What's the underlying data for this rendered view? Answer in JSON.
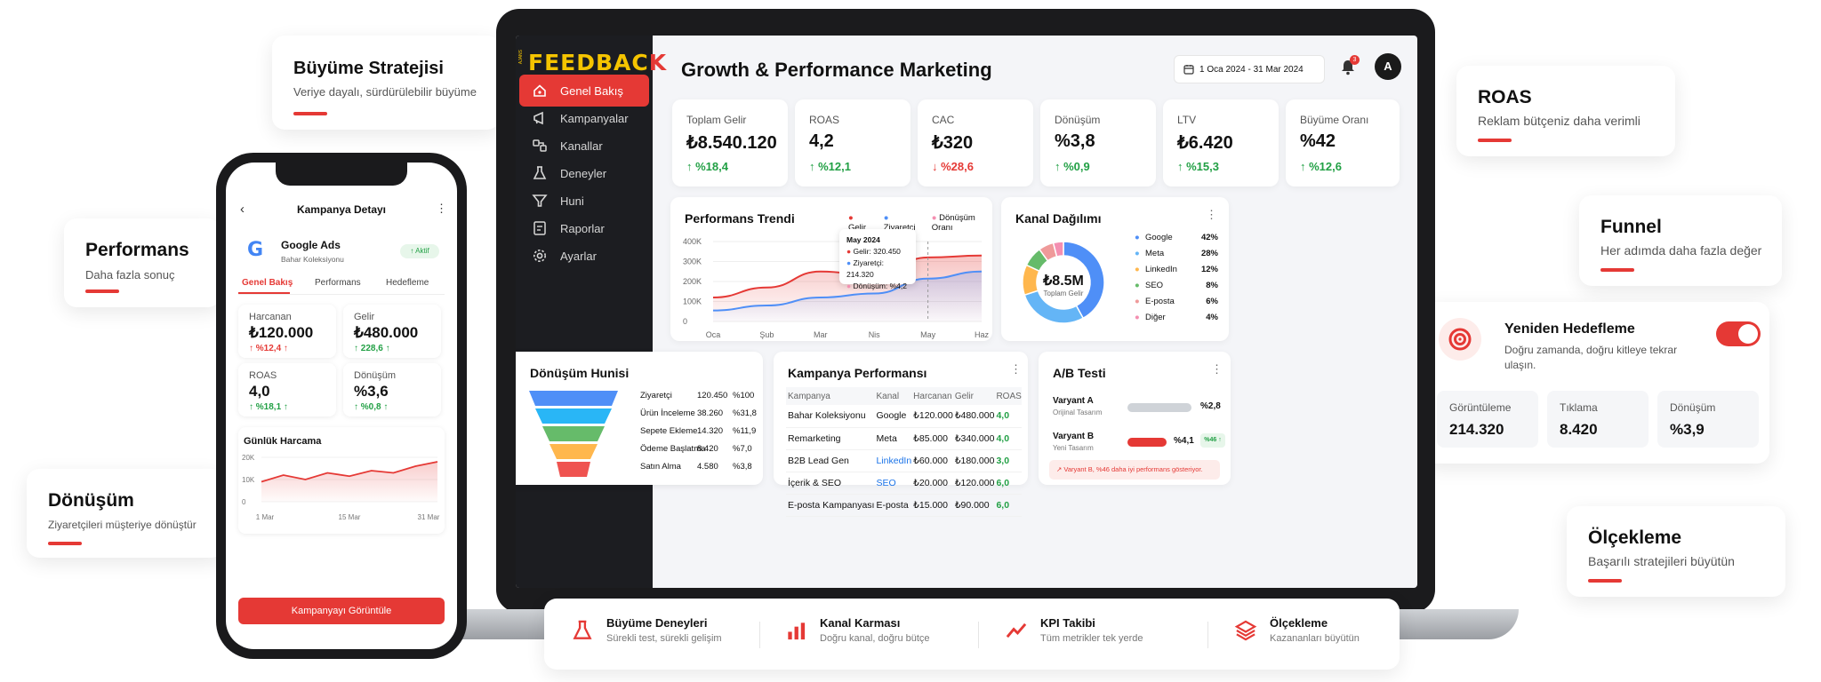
{
  "app": {
    "logo_main": "FEEDBAC",
    "logo_accent": "K",
    "logo_prefix": "AJANS",
    "title": "Growth & Performance Marketing",
    "date_range": "1 Oca 2024 - 31 Mar 2024",
    "notification_count": "3",
    "avatar_initial": "A"
  },
  "sidebar": {
    "items": [
      {
        "label": "Genel Bakış",
        "icon": "home-icon"
      },
      {
        "label": "Kampanyalar",
        "icon": "megaphone-icon"
      },
      {
        "label": "Kanallar",
        "icon": "channels-icon"
      },
      {
        "label": "Deneyler",
        "icon": "flask-icon"
      },
      {
        "label": "Huni",
        "icon": "funnel-icon"
      },
      {
        "label": "Raporlar",
        "icon": "report-icon"
      },
      {
        "label": "Ayarlar",
        "icon": "gear-icon"
      }
    ]
  },
  "kpis": [
    {
      "label": "Toplam Gelir",
      "value": "₺8.540.120",
      "delta": "%18,4",
      "dir": "up"
    },
    {
      "label": "ROAS",
      "value": "4,2",
      "delta": "%12,1",
      "dir": "up"
    },
    {
      "label": "CAC",
      "value": "₺320",
      "delta": "%28,6",
      "dir": "down"
    },
    {
      "label": "Dönüşüm",
      "value": "%3,8",
      "delta": "%0,9",
      "dir": "up"
    },
    {
      "label": "LTV",
      "value": "₺6.420",
      "delta": "%15,3",
      "dir": "up"
    },
    {
      "label": "Büyüme Oranı",
      "value": "%42",
      "delta": "%12,6",
      "dir": "up"
    }
  ],
  "trend": {
    "title": "Performans Trendi",
    "legend": [
      "Gelir",
      "Ziyaretçi",
      "Dönüşüm Oranı"
    ],
    "tooltip": {
      "title": "May 2024",
      "l1": "Gelir: 320.450",
      "l2": "Ziyaretçi: 214.320",
      "l3": "Dönüşüm: %4,2"
    }
  },
  "channels": {
    "title": "Kanal Dağılımı",
    "center_value": "₺8.5M",
    "center_label": "Toplam Gelir"
  },
  "funnel": {
    "title": "Dönüşüm Hunisi",
    "rows": [
      {
        "label": "Ziyaretçi",
        "value": "120.450",
        "pct": "%100"
      },
      {
        "label": "Ürün İnceleme",
        "value": "38.260",
        "pct": "%31,8"
      },
      {
        "label": "Sepete Ekleme",
        "value": "14.320",
        "pct": "%11,9"
      },
      {
        "label": "Ödeme Başlatma",
        "value": "8.420",
        "pct": "%7,0"
      },
      {
        "label": "Satın Alma",
        "value": "4.580",
        "pct": "%3,8"
      }
    ]
  },
  "campaigns": {
    "title": "Kampanya Performansı",
    "headers": [
      "Kampanya",
      "Kanal",
      "Harcanan",
      "Gelir",
      "ROAS"
    ],
    "rows": [
      [
        "Bahar Koleksiyonu",
        "Google",
        "₺120.000",
        "₺480.000",
        "4,0"
      ],
      [
        "Remarketing",
        "Meta",
        "₺85.000",
        "₺340.000",
        "4,0"
      ],
      [
        "B2B Lead Gen",
        "LinkedIn",
        "₺60.000",
        "₺180.000",
        "3,0"
      ],
      [
        "İçerik & SEO",
        "SEO",
        "₺20.000",
        "₺120.000",
        "6,0"
      ],
      [
        "E-posta Kampanyası",
        "E-posta",
        "₺15.000",
        "₺90.000",
        "6,0"
      ]
    ]
  },
  "ab": {
    "title": "A/B Testi",
    "a_name": "Varyant A",
    "a_sub": "Orijinal Tasarım",
    "a_pct": "%2,8",
    "b_name": "Varyant B",
    "b_sub": "Yeni Tasarım",
    "b_pct": "%4,1",
    "b_lift": "%46",
    "note": "Varyant B, %46 daha iyi performans gösteriyor."
  },
  "phone": {
    "title": "Kampanya Detayı",
    "campaign_name": "Google Ads",
    "campaign_sub": "Bahar Koleksiyonu",
    "status": "Aktif",
    "tabs": [
      "Genel Bakış",
      "Performans",
      "Hedefleme"
    ],
    "cards": [
      {
        "label": "Harcanan",
        "value": "₺120.000",
        "delta": "%12,4",
        "dir": "down"
      },
      {
        "label": "Gelir",
        "value": "₺480.000",
        "delta": "228,6",
        "dir": "up"
      },
      {
        "label": "ROAS",
        "value": "4,0",
        "delta": "%18,1",
        "dir": "up"
      },
      {
        "label": "Dönüşüm",
        "value": "%3,6",
        "delta": "%0,8",
        "dir": "up"
      }
    ],
    "daily_title": "Günlük Harcama",
    "daily_y": [
      "20K",
      "10K",
      "0"
    ],
    "daily_x": [
      "1 Mar",
      "15 Mar",
      "31 Mar"
    ],
    "cta": "Kampanyayı Görüntüle"
  },
  "floating": {
    "growth": {
      "title": "Büyüme Stratejisi",
      "sub": "Veriye dayalı, sürdürülebilir büyüme"
    },
    "perf": {
      "title": "Performans",
      "sub": "Daha fazla sonuç"
    },
    "conv": {
      "title": "Dönüşüm",
      "sub": "Ziyaretçileri müşteriye dönüştür"
    },
    "roas": {
      "title": "ROAS",
      "sub": "Reklam bütçeniz daha verimli"
    },
    "funnel": {
      "title": "Funnel",
      "sub": "Her adımda daha fazla değer"
    },
    "scale": {
      "title": "Ölçekleme",
      "sub": "Başarılı stratejileri büyütün"
    },
    "retarget": {
      "title": "Yeniden Hedefleme",
      "sub": "Doğru zamanda, doğru kitleye tekrar ulaşın.",
      "stats": [
        {
          "label": "Görüntüleme",
          "value": "214.320"
        },
        {
          "label": "Tıklama",
          "value": "8.420"
        },
        {
          "label": "Dönüşüm",
          "value": "%3,9"
        }
      ]
    }
  },
  "features": [
    {
      "title": "Büyüme Deneyleri",
      "sub": "Sürekli test, sürekli gelişim",
      "icon": "flask-icon"
    },
    {
      "title": "Kanal Karması",
      "sub": "Doğru kanal, doğru bütçe",
      "icon": "bar-chart-icon"
    },
    {
      "title": "KPI Takibi",
      "sub": "Tüm metrikler tek yerde",
      "icon": "trend-icon"
    },
    {
      "title": "Ölçekleme",
      "sub": "Kazananları büyütün",
      "icon": "layers-icon"
    }
  ],
  "colors": {
    "accent": "#e53935",
    "positive": "#22a045",
    "sidebar": "#1c1d21"
  },
  "chart_data": [
    {
      "type": "area",
      "title": "Performans Trendi",
      "categories": [
        "Oca",
        "Şub",
        "Mar",
        "Nis",
        "May",
        "Haz"
      ],
      "y_ticks": [
        "400K",
        "300K",
        "200K",
        "100K",
        "0"
      ],
      "ylim": [
        0,
        400000
      ],
      "series": [
        {
          "name": "Gelir",
          "color": "#e53935",
          "values": [
            120000,
            170000,
            250000,
            230000,
            320450,
            330000
          ]
        },
        {
          "name": "Ziyaretçi",
          "color": "#4f8ff7",
          "values": [
            55000,
            80000,
            120000,
            140000,
            214320,
            250000
          ]
        }
      ],
      "legend": "top-right",
      "grid": true
    },
    {
      "type": "pie",
      "title": "Kanal Dağılımı",
      "labels": [
        "Google",
        "Meta",
        "LinkedIn",
        "SEO",
        "E-posta",
        "Diğer"
      ],
      "values": [
        42,
        28,
        12,
        8,
        6,
        4
      ],
      "display": [
        "42%",
        "28%",
        "12%",
        "8%",
        "6%",
        "4%"
      ],
      "colors": [
        "#4f8ff7",
        "#64b5f6",
        "#ffb74d",
        "#66bb6a",
        "#ef9a9a",
        "#f48fb1"
      ]
    },
    {
      "type": "line",
      "title": "Günlük Harcama",
      "x": [
        "1 Mar",
        "5",
        "9",
        "13",
        "17",
        "21",
        "25",
        "29",
        "31 Mar"
      ],
      "values": [
        9000,
        12000,
        10000,
        13000,
        11500,
        14000,
        13000,
        16000,
        18000
      ],
      "ylim": [
        0,
        20000
      ]
    }
  ]
}
